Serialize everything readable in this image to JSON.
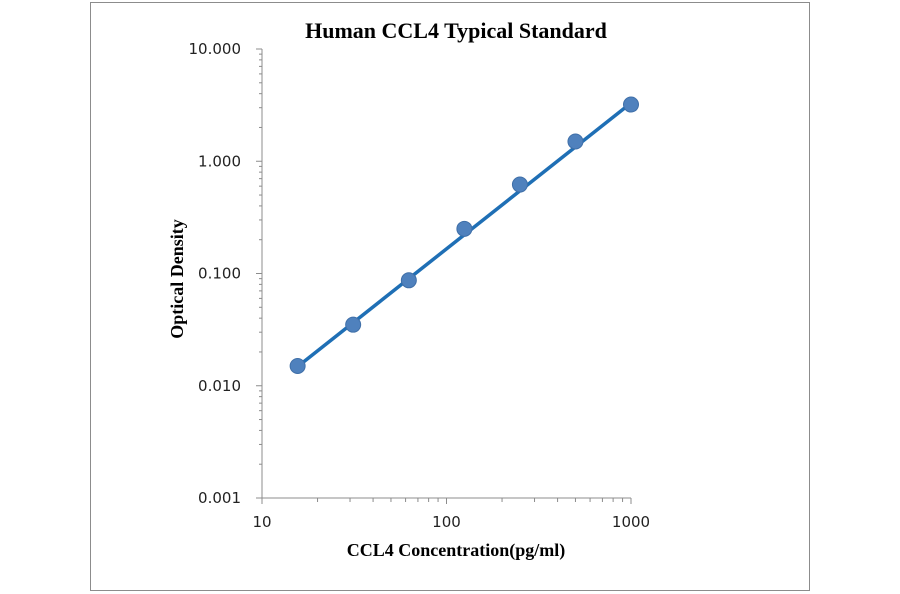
{
  "chart_data": {
    "type": "scatter",
    "title": "Human CCL4 Typical Standard",
    "xlabel": "CCL4 Concentration(pg/ml)",
    "ylabel": "Optical Density",
    "x_scale": "log",
    "y_scale": "log",
    "xlim": [
      10,
      1000
    ],
    "ylim": [
      0.001,
      10
    ],
    "x_ticks": [
      "10",
      "100",
      "1000"
    ],
    "y_ticks": [
      "10.000",
      "1.000",
      "0.100",
      "0.010",
      "0.001"
    ],
    "grid": false,
    "legend": "none",
    "series": [
      {
        "x": [
          15.6,
          31.2,
          62.5,
          125,
          250,
          500,
          1000
        ],
        "y": [
          0.015,
          0.035,
          0.087,
          0.25,
          0.62,
          1.5,
          3.2
        ],
        "color": "#4f81bd",
        "trendline": {
          "type": "power",
          "color": "#1f6fb5",
          "x": [
            15.6,
            1000
          ],
          "y": [
            0.0148,
            3.3
          ]
        }
      }
    ]
  }
}
